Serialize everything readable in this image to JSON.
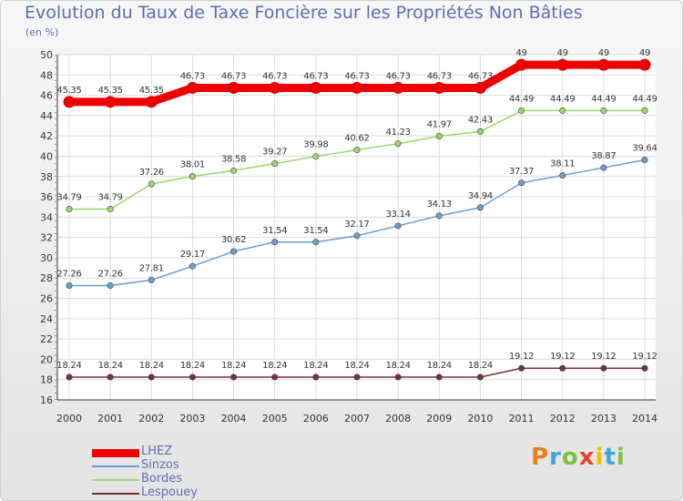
{
  "title": "Evolution du Taux de Taxe Foncière sur les Propriétés Non Bâties",
  "unit_label": "(en %)",
  "brand": "Proxiti",
  "brand_colors": [
    "#e8821a",
    "#3fa7d6",
    "#7cc142",
    "#e6442a",
    "#f2c200",
    "#3fa7d6",
    "#7cc142"
  ],
  "chart_data": {
    "type": "line",
    "x": [
      "2000",
      "2001",
      "2002",
      "2003",
      "2004",
      "2005",
      "2006",
      "2007",
      "2008",
      "2009",
      "2010",
      "2011",
      "2012",
      "2013",
      "2014"
    ],
    "ylim": [
      16,
      50
    ],
    "yticks": [
      16,
      18,
      20,
      22,
      24,
      26,
      28,
      30,
      32,
      34,
      36,
      38,
      40,
      42,
      44,
      46,
      48,
      50
    ],
    "grid": true,
    "legend_position": "bottom-left",
    "series": [
      {
        "name": "LHEZ",
        "color": "#ee0000",
        "values": [
          45.35,
          45.35,
          45.35,
          46.73,
          46.73,
          46.73,
          46.73,
          46.73,
          46.73,
          46.73,
          46.73,
          49,
          49,
          49,
          49
        ],
        "labels": [
          "45.35",
          "45.35",
          "45.35",
          "46.73",
          "46.73",
          "46.73",
          "46.73",
          "46.73",
          "46.73",
          "46.73",
          "46.73",
          "49",
          "49",
          "49",
          "49"
        ]
      },
      {
        "name": "Sinzos",
        "color": "#6a9fd0",
        "values": [
          27.26,
          27.26,
          27.81,
          29.17,
          30.62,
          31.54,
          31.54,
          32.17,
          33.14,
          34.13,
          34.94,
          37.37,
          38.11,
          38.87,
          39.64
        ],
        "labels": [
          "27.26",
          "27.26",
          "27.81",
          "29.17",
          "30.62",
          "31.54",
          "31.54",
          "32.17",
          "33.14",
          "34.13",
          "34.94",
          "37.37",
          "38.11",
          "38.87",
          "39.64"
        ]
      },
      {
        "name": "Bordes",
        "color": "#9ad86a",
        "values": [
          34.79,
          34.79,
          37.26,
          38.01,
          38.58,
          39.27,
          39.98,
          40.62,
          41.23,
          41.97,
          42.43,
          44.49,
          44.49,
          44.49,
          44.49
        ],
        "labels": [
          "34.79",
          "34.79",
          "37.26",
          "38.01",
          "38.58",
          "39.27",
          "39.98",
          "40.62",
          "41.23",
          "41.97",
          "42.43",
          "44.49",
          "44.49",
          "44.49",
          "44.49"
        ]
      },
      {
        "name": "Lespouey",
        "color": "#7a3030",
        "values": [
          18.24,
          18.24,
          18.24,
          18.24,
          18.24,
          18.24,
          18.24,
          18.24,
          18.24,
          18.24,
          18.24,
          19.12,
          19.12,
          19.12,
          19.12
        ],
        "labels": [
          "18.24",
          "18.24",
          "18.24",
          "18.24",
          "18.24",
          "18.24",
          "18.24",
          "18.24",
          "18.24",
          "18.24",
          "18.24",
          "19.12",
          "19.12",
          "19.12",
          "19.12"
        ]
      }
    ]
  }
}
